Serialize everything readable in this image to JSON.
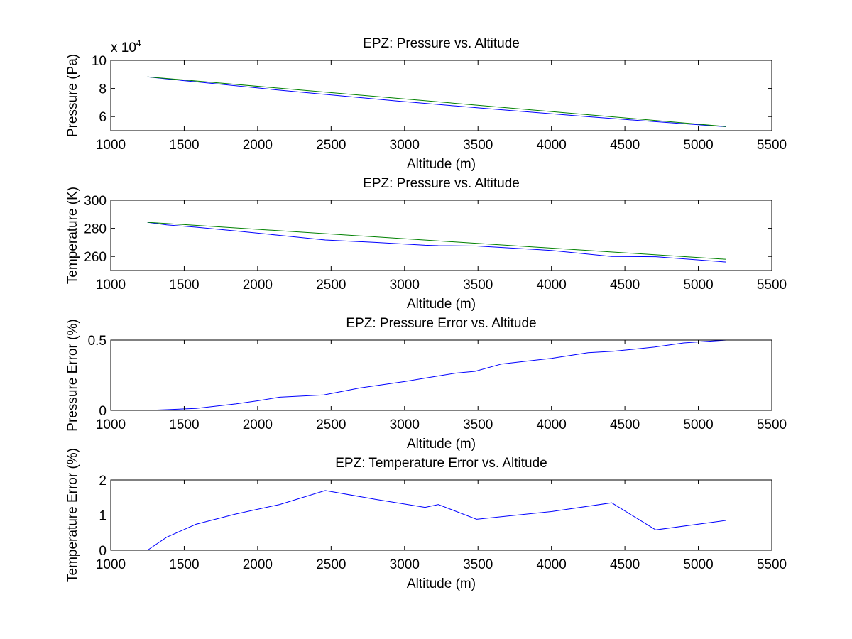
{
  "chart_data": [
    {
      "type": "line",
      "title": "EPZ: Pressure vs. Altitude",
      "xlabel": "Altitude (m)",
      "ylabel": "Pressure (Pa)",
      "xlim": [
        1000,
        5500
      ],
      "ylim": [
        50000,
        100000
      ],
      "xticks": [
        1000,
        1500,
        2000,
        2500,
        3000,
        3500,
        4000,
        4500,
        5000,
        5500
      ],
      "xticklabels": [
        "1000",
        "1500",
        "2000",
        "2500",
        "3000",
        "3500",
        "4000",
        "4500",
        "5000",
        "5500"
      ],
      "yticks": [
        60000,
        80000,
        100000
      ],
      "yticklabels": [
        "6",
        "8",
        "10"
      ],
      "yexponent": {
        "base": "x 10",
        "power": "4"
      },
      "series": [
        {
          "color": "#0000ff",
          "x": [
            1250,
            1380,
            1580,
            1850,
            2150,
            2450,
            2700,
            2950,
            3150,
            3350,
            3500,
            3700,
            3950,
            4250,
            4420,
            4700,
            4900,
            5190
          ],
          "y": [
            88300,
            86800,
            84700,
            81900,
            78800,
            75900,
            73500,
            71100,
            69300,
            67500,
            66200,
            64500,
            62400,
            59900,
            58600,
            56400,
            54900,
            52800
          ]
        },
        {
          "color": "#008000",
          "x": [
            1250,
            5190
          ],
          "y": [
            88300,
            52900
          ]
        }
      ]
    },
    {
      "type": "line",
      "title": "EPZ: Pressure vs. Altitude",
      "xlabel": "Altitude (m)",
      "ylabel": "Temperature (K)",
      "xlim": [
        1000,
        5500
      ],
      "ylim": [
        250,
        300
      ],
      "xticks": [
        1000,
        1500,
        2000,
        2500,
        3000,
        3500,
        4000,
        4500,
        5000,
        5500
      ],
      "xticklabels": [
        "1000",
        "1500",
        "2000",
        "2500",
        "3000",
        "3500",
        "4000",
        "4500",
        "5000",
        "5500"
      ],
      "yticks": [
        260,
        280,
        300
      ],
      "yticklabels": [
        "260",
        "280",
        "300"
      ],
      "series": [
        {
          "color": "#0000ff",
          "x": [
            1250,
            1380,
            1580,
            1850,
            2150,
            2460,
            2800,
            3140,
            3230,
            3490,
            4000,
            4410,
            4710,
            5190
          ],
          "y": [
            284.3,
            282.4,
            280.8,
            278.2,
            275.0,
            271.7,
            270.0,
            268.0,
            267.7,
            267.4,
            264.3,
            260.0,
            259.8,
            256.0
          ]
        },
        {
          "color": "#008000",
          "x": [
            1250,
            5190
          ],
          "y": [
            284.3,
            258.0
          ]
        }
      ]
    },
    {
      "type": "line",
      "title": "EPZ: Pressure Error vs. Altitude",
      "xlabel": "Altitude (m)",
      "ylabel": "Pressure Error (%)",
      "xlim": [
        1000,
        5500
      ],
      "ylim": [
        0,
        0.5
      ],
      "xticks": [
        1000,
        1500,
        2000,
        2500,
        3000,
        3500,
        4000,
        4500,
        5000,
        5500
      ],
      "xticklabels": [
        "1000",
        "1500",
        "2000",
        "2500",
        "3000",
        "3500",
        "4000",
        "4500",
        "5000",
        "5500"
      ],
      "yticks": [
        0,
        0.5
      ],
      "yticklabels": [
        "0",
        "0.5"
      ],
      "series": [
        {
          "color": "#0000ff",
          "x": [
            1250,
            1380,
            1580,
            1850,
            2000,
            2150,
            2450,
            2700,
            3000,
            3200,
            3350,
            3480,
            3660,
            4000,
            4250,
            4420,
            4700,
            4900,
            5190
          ],
          "y": [
            0.0,
            0.005,
            0.014,
            0.046,
            0.068,
            0.094,
            0.11,
            0.16,
            0.205,
            0.24,
            0.265,
            0.278,
            0.33,
            0.37,
            0.41,
            0.42,
            0.45,
            0.48,
            0.5
          ]
        }
      ]
    },
    {
      "type": "line",
      "title": "EPZ: Temperature Error vs. Altitude",
      "xlabel": "Altitude (m)",
      "ylabel": "Temperature Error (%)",
      "xlim": [
        1000,
        5500
      ],
      "ylim": [
        0,
        2
      ],
      "xticks": [
        1000,
        1500,
        2000,
        2500,
        3000,
        3500,
        4000,
        4500,
        5000,
        5500
      ],
      "xticklabels": [
        "1000",
        "1500",
        "2000",
        "2500",
        "3000",
        "3500",
        "4000",
        "4500",
        "5000",
        "5500"
      ],
      "yticks": [
        0,
        1,
        2
      ],
      "yticklabels": [
        "0",
        "1",
        "2"
      ],
      "series": [
        {
          "color": "#0000ff",
          "x": [
            1250,
            1380,
            1580,
            1850,
            2150,
            2460,
            2800,
            3140,
            3230,
            3490,
            4000,
            4410,
            4710,
            5190
          ],
          "y": [
            0.0,
            0.37,
            0.74,
            1.03,
            1.3,
            1.7,
            1.45,
            1.22,
            1.3,
            0.88,
            1.1,
            1.35,
            0.58,
            0.85
          ]
        }
      ]
    }
  ]
}
